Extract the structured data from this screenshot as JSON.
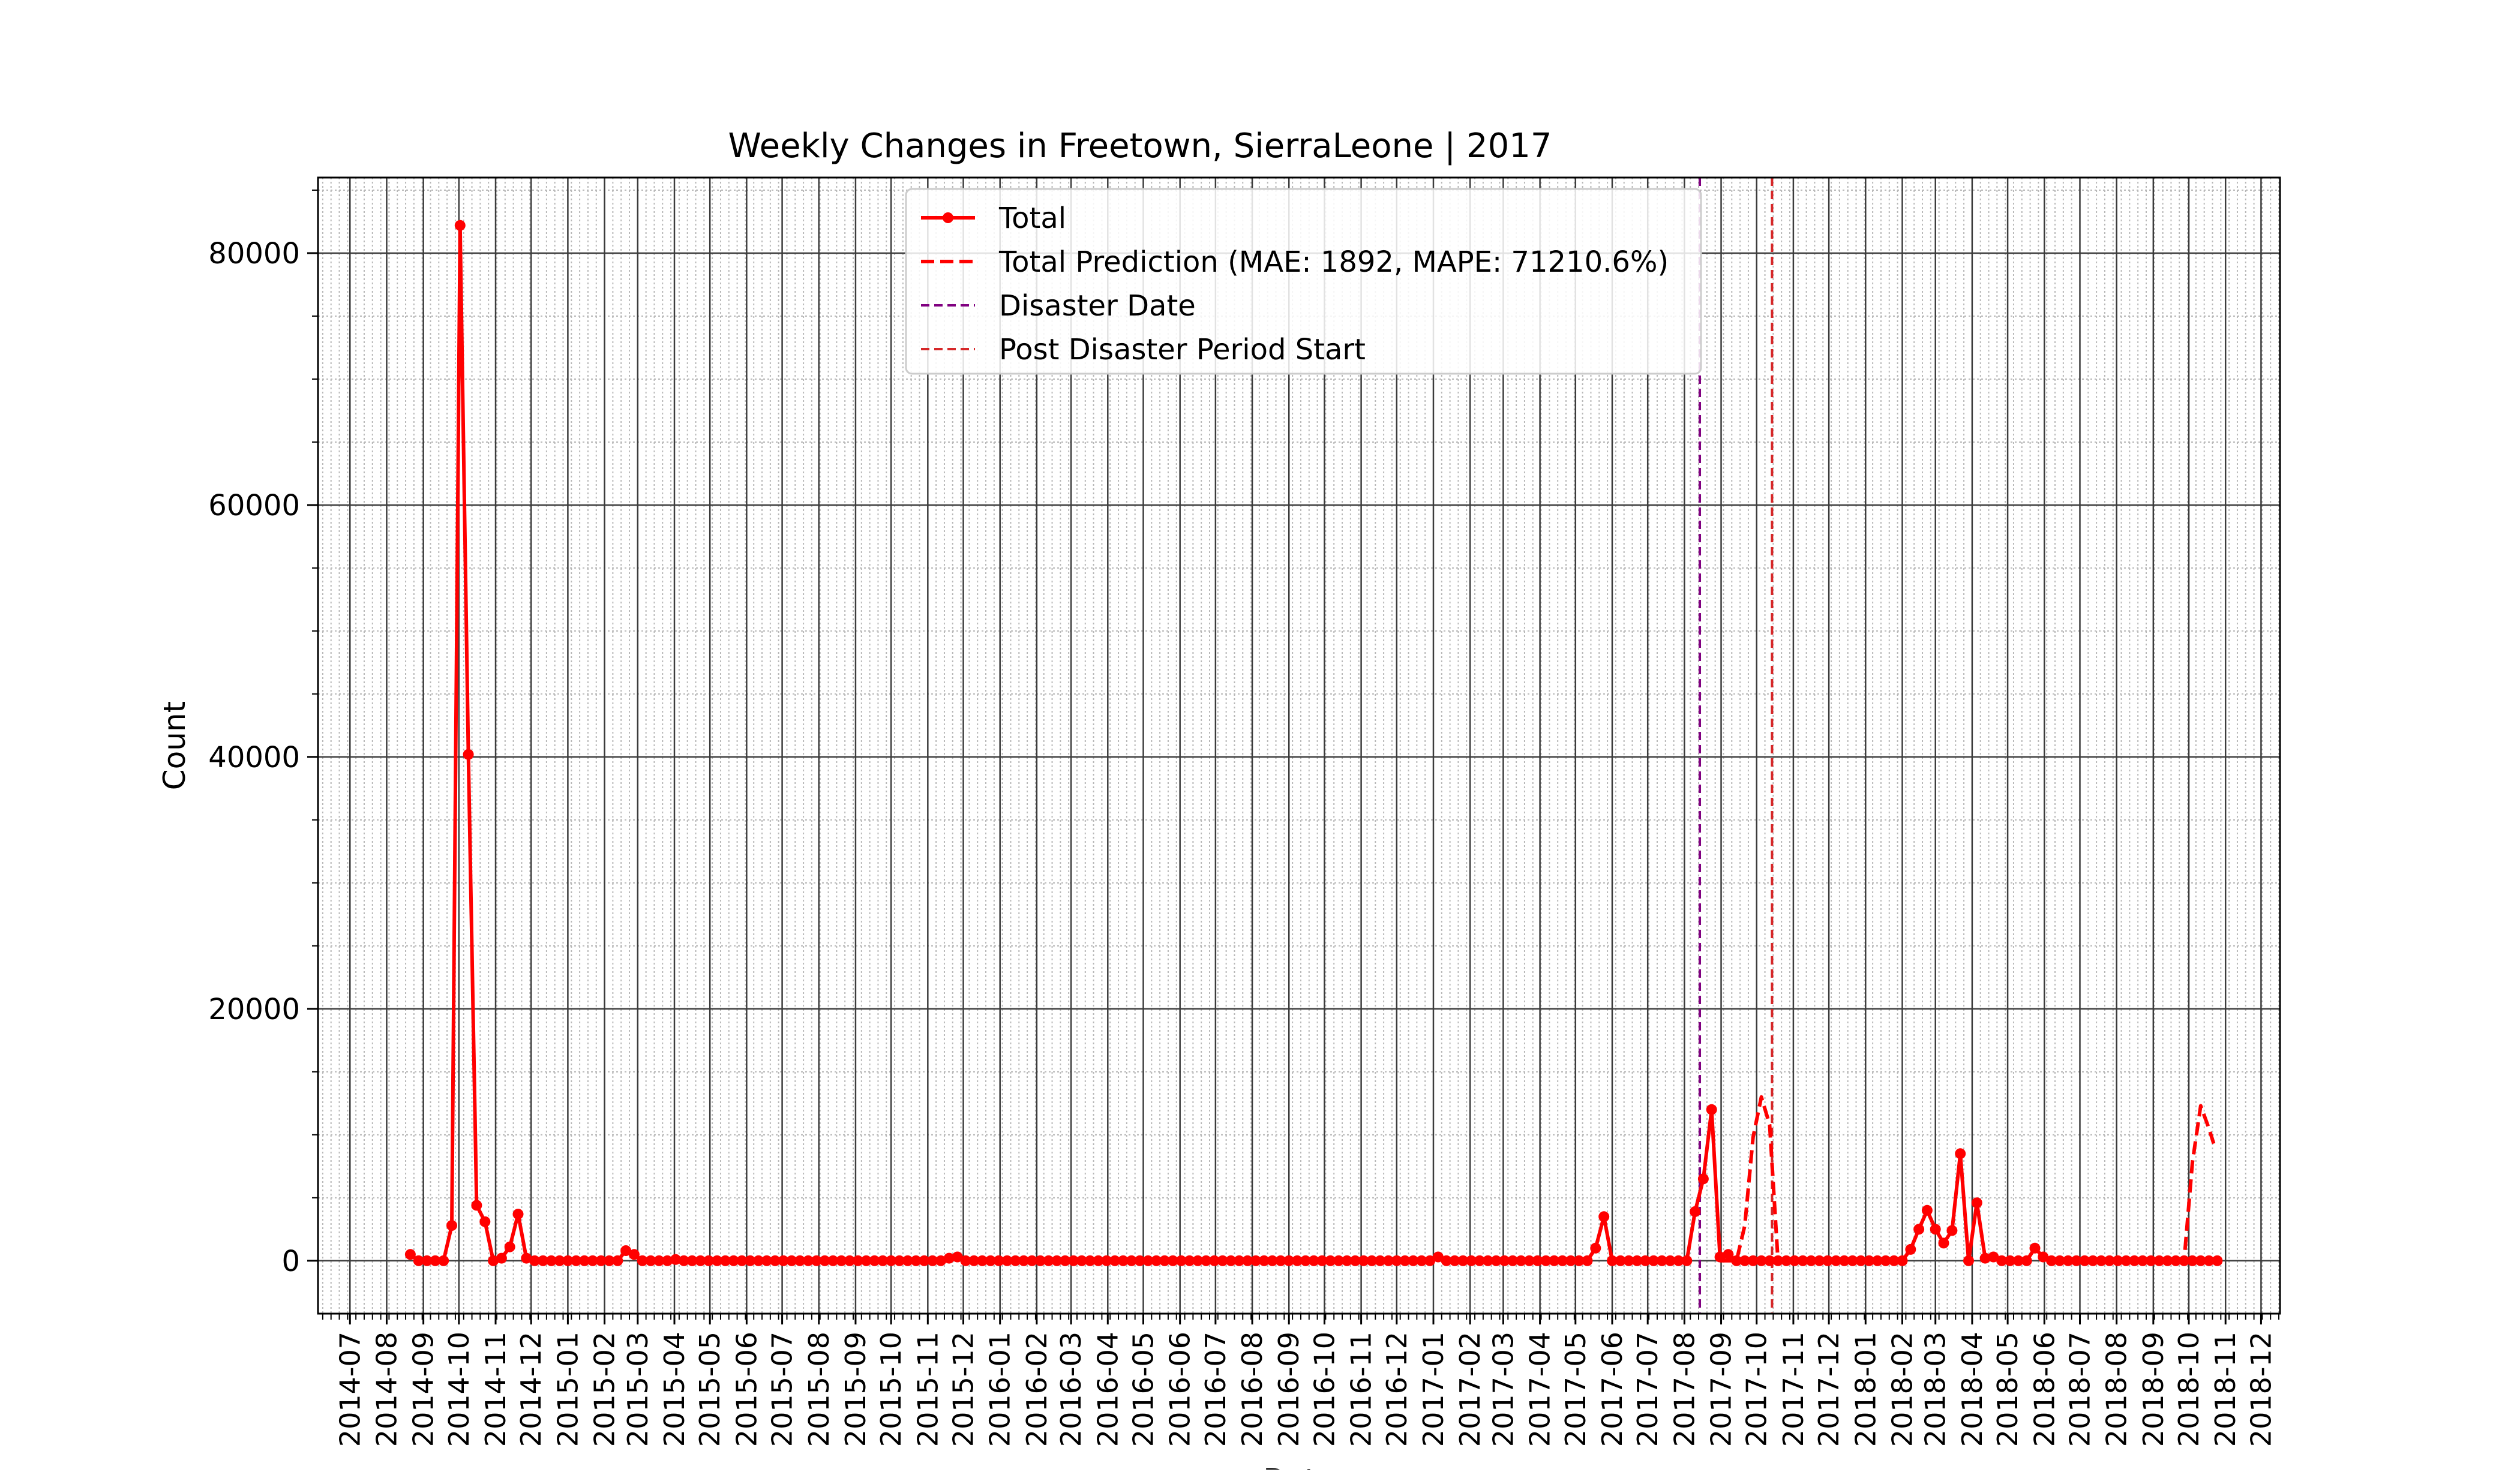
{
  "chart_data": {
    "type": "line",
    "title": "Weekly Changes in Freetown, SierraLeone | 2017",
    "xlabel": "Date",
    "ylabel": "Count",
    "ylim": [
      -4200,
      86000
    ],
    "xlim": [
      "2014-06-04",
      "2018-12-17"
    ],
    "yticks": [
      0,
      20000,
      40000,
      60000,
      80000
    ],
    "grid": true,
    "legend_placement": "upper center",
    "x_tick_labels": [
      "2014-07",
      "2014-08",
      "2014-09",
      "2014-10",
      "2014-11",
      "2014-12",
      "2015-01",
      "2015-02",
      "2015-03",
      "2015-04",
      "2015-05",
      "2015-06",
      "2015-07",
      "2015-08",
      "2015-09",
      "2015-10",
      "2015-11",
      "2015-12",
      "2016-01",
      "2016-02",
      "2016-03",
      "2016-04",
      "2016-05",
      "2016-06",
      "2016-07",
      "2016-08",
      "2016-09",
      "2016-10",
      "2016-11",
      "2016-12",
      "2017-01",
      "2017-02",
      "2017-03",
      "2017-04",
      "2017-05",
      "2017-06",
      "2017-07",
      "2017-08",
      "2017-09",
      "2017-10",
      "2017-11",
      "2017-12",
      "2018-01",
      "2018-02",
      "2018-03",
      "2018-04",
      "2018-05",
      "2018-06",
      "2018-07",
      "2018-08",
      "2018-09",
      "2018-10",
      "2018-11",
      "2018-12"
    ],
    "series": [
      {
        "name": "Total",
        "color": "#ff0000",
        "style": "solid-markers",
        "points": [
          [
            "2014-08-21",
            500
          ],
          [
            "2014-08-28",
            0
          ],
          [
            "2014-09-04",
            0
          ],
          [
            "2014-09-11",
            0
          ],
          [
            "2014-09-18",
            0
          ],
          [
            "2014-09-25",
            2800
          ],
          [
            "2014-10-02",
            82200
          ],
          [
            "2014-10-09",
            40200
          ],
          [
            "2014-10-16",
            4400
          ],
          [
            "2014-10-23",
            3100
          ],
          [
            "2014-10-30",
            0
          ],
          [
            "2014-11-06",
            200
          ],
          [
            "2014-11-13",
            1100
          ],
          [
            "2014-11-20",
            3700
          ],
          [
            "2014-11-27",
            200
          ],
          [
            "2014-12-04",
            0
          ],
          [
            "2014-12-11",
            0
          ],
          [
            "2014-12-18",
            0
          ],
          [
            "2014-12-25",
            0
          ],
          [
            "2015-01-01",
            0
          ],
          [
            "2015-01-08",
            0
          ],
          [
            "2015-01-15",
            0
          ],
          [
            "2015-01-22",
            0
          ],
          [
            "2015-01-29",
            0
          ],
          [
            "2015-02-05",
            0
          ],
          [
            "2015-02-12",
            0
          ],
          [
            "2015-02-19",
            800
          ],
          [
            "2015-02-26",
            500
          ],
          [
            "2015-03-05",
            0
          ],
          [
            "2015-03-12",
            0
          ],
          [
            "2015-03-19",
            0
          ],
          [
            "2015-03-26",
            0
          ],
          [
            "2015-04-02",
            100
          ],
          [
            "2015-04-09",
            0
          ],
          [
            "2015-04-16",
            0
          ],
          [
            "2015-04-23",
            0
          ],
          [
            "2015-04-30",
            0
          ],
          [
            "2015-05-07",
            0
          ],
          [
            "2015-05-14",
            0
          ],
          [
            "2015-05-21",
            0
          ],
          [
            "2015-05-28",
            0
          ],
          [
            "2015-06-04",
            0
          ],
          [
            "2015-06-11",
            0
          ],
          [
            "2015-06-18",
            0
          ],
          [
            "2015-06-25",
            0
          ],
          [
            "2015-07-02",
            0
          ],
          [
            "2015-07-09",
            0
          ],
          [
            "2015-07-16",
            0
          ],
          [
            "2015-07-23",
            0
          ],
          [
            "2015-07-30",
            0
          ],
          [
            "2015-08-06",
            0
          ],
          [
            "2015-08-13",
            0
          ],
          [
            "2015-08-20",
            0
          ],
          [
            "2015-08-27",
            0
          ],
          [
            "2015-09-03",
            0
          ],
          [
            "2015-09-10",
            0
          ],
          [
            "2015-09-17",
            0
          ],
          [
            "2015-09-24",
            0
          ],
          [
            "2015-10-01",
            0
          ],
          [
            "2015-10-08",
            0
          ],
          [
            "2015-10-15",
            0
          ],
          [
            "2015-10-22",
            0
          ],
          [
            "2015-10-29",
            0
          ],
          [
            "2015-11-05",
            0
          ],
          [
            "2015-11-12",
            0
          ],
          [
            "2015-11-19",
            200
          ],
          [
            "2015-11-26",
            300
          ],
          [
            "2015-12-03",
            0
          ],
          [
            "2015-12-10",
            0
          ],
          [
            "2015-12-17",
            0
          ],
          [
            "2015-12-24",
            0
          ],
          [
            "2015-12-31",
            0
          ],
          [
            "2016-01-07",
            0
          ],
          [
            "2016-01-14",
            0
          ],
          [
            "2016-01-21",
            0
          ],
          [
            "2016-01-28",
            0
          ],
          [
            "2016-02-04",
            0
          ],
          [
            "2016-02-11",
            0
          ],
          [
            "2016-02-18",
            0
          ],
          [
            "2016-02-25",
            0
          ],
          [
            "2016-03-03",
            0
          ],
          [
            "2016-03-10",
            0
          ],
          [
            "2016-03-17",
            0
          ],
          [
            "2016-03-24",
            0
          ],
          [
            "2016-03-31",
            0
          ],
          [
            "2016-04-07",
            0
          ],
          [
            "2016-04-14",
            0
          ],
          [
            "2016-04-21",
            0
          ],
          [
            "2016-04-28",
            0
          ],
          [
            "2016-05-05",
            0
          ],
          [
            "2016-05-12",
            0
          ],
          [
            "2016-05-19",
            0
          ],
          [
            "2016-05-26",
            0
          ],
          [
            "2016-06-02",
            0
          ],
          [
            "2016-06-09",
            0
          ],
          [
            "2016-06-16",
            0
          ],
          [
            "2016-06-23",
            0
          ],
          [
            "2016-06-30",
            0
          ],
          [
            "2016-07-07",
            0
          ],
          [
            "2016-07-14",
            0
          ],
          [
            "2016-07-21",
            0
          ],
          [
            "2016-07-28",
            0
          ],
          [
            "2016-08-04",
            0
          ],
          [
            "2016-08-11",
            0
          ],
          [
            "2016-08-18",
            0
          ],
          [
            "2016-08-25",
            0
          ],
          [
            "2016-09-01",
            0
          ],
          [
            "2016-09-08",
            0
          ],
          [
            "2016-09-15",
            0
          ],
          [
            "2016-09-22",
            0
          ],
          [
            "2016-09-29",
            0
          ],
          [
            "2016-10-06",
            0
          ],
          [
            "2016-10-13",
            0
          ],
          [
            "2016-10-20",
            0
          ],
          [
            "2016-10-27",
            0
          ],
          [
            "2016-11-03",
            0
          ],
          [
            "2016-11-10",
            0
          ],
          [
            "2016-11-17",
            0
          ],
          [
            "2016-11-24",
            0
          ],
          [
            "2016-12-01",
            0
          ],
          [
            "2016-12-08",
            0
          ],
          [
            "2016-12-15",
            0
          ],
          [
            "2016-12-22",
            0
          ],
          [
            "2016-12-29",
            0
          ],
          [
            "2017-01-05",
            300
          ],
          [
            "2017-01-12",
            0
          ],
          [
            "2017-01-19",
            0
          ],
          [
            "2017-01-26",
            0
          ],
          [
            "2017-02-02",
            0
          ],
          [
            "2017-02-09",
            0
          ],
          [
            "2017-02-16",
            0
          ],
          [
            "2017-02-23",
            0
          ],
          [
            "2017-03-02",
            0
          ],
          [
            "2017-03-09",
            0
          ],
          [
            "2017-03-16",
            0
          ],
          [
            "2017-03-23",
            0
          ],
          [
            "2017-03-30",
            0
          ],
          [
            "2017-04-06",
            0
          ],
          [
            "2017-04-13",
            0
          ],
          [
            "2017-04-20",
            0
          ],
          [
            "2017-04-27",
            0
          ],
          [
            "2017-05-04",
            0
          ],
          [
            "2017-05-11",
            0
          ],
          [
            "2017-05-18",
            1000
          ],
          [
            "2017-05-25",
            3500
          ],
          [
            "2017-06-01",
            0
          ],
          [
            "2017-06-08",
            0
          ],
          [
            "2017-06-15",
            0
          ],
          [
            "2017-06-22",
            0
          ],
          [
            "2017-06-29",
            0
          ],
          [
            "2017-07-06",
            0
          ],
          [
            "2017-07-13",
            0
          ],
          [
            "2017-07-20",
            0
          ],
          [
            "2017-07-27",
            0
          ],
          [
            "2017-08-03",
            0
          ],
          [
            "2017-08-10",
            3900
          ],
          [
            "2017-08-17",
            6500
          ],
          [
            "2017-08-24",
            12000
          ],
          [
            "2017-08-31",
            300
          ],
          [
            "2017-09-07",
            500
          ],
          [
            "2017-09-14",
            0
          ],
          [
            "2017-09-21",
            0
          ],
          [
            "2017-09-28",
            0
          ],
          [
            "2017-10-05",
            0
          ],
          [
            "2017-10-12",
            0
          ],
          [
            "2017-10-19",
            0
          ],
          [
            "2017-10-26",
            0
          ],
          [
            "2017-11-02",
            0
          ],
          [
            "2017-11-09",
            0
          ],
          [
            "2017-11-16",
            0
          ],
          [
            "2017-11-23",
            0
          ],
          [
            "2017-11-30",
            0
          ],
          [
            "2017-12-07",
            0
          ],
          [
            "2017-12-14",
            0
          ],
          [
            "2017-12-21",
            0
          ],
          [
            "2017-12-28",
            0
          ],
          [
            "2018-01-04",
            0
          ],
          [
            "2018-01-11",
            0
          ],
          [
            "2018-01-18",
            0
          ],
          [
            "2018-01-25",
            0
          ],
          [
            "2018-02-01",
            0
          ],
          [
            "2018-02-08",
            900
          ],
          [
            "2018-02-15",
            2500
          ],
          [
            "2018-02-22",
            4000
          ],
          [
            "2018-03-01",
            2500
          ],
          [
            "2018-03-08",
            1400
          ],
          [
            "2018-03-15",
            2400
          ],
          [
            "2018-03-22",
            8500
          ],
          [
            "2018-03-29",
            0
          ],
          [
            "2018-04-05",
            4600
          ],
          [
            "2018-04-12",
            200
          ],
          [
            "2018-04-19",
            300
          ],
          [
            "2018-04-26",
            0
          ],
          [
            "2018-05-03",
            0
          ],
          [
            "2018-05-10",
            0
          ],
          [
            "2018-05-17",
            0
          ],
          [
            "2018-05-24",
            1000
          ],
          [
            "2018-05-31",
            300
          ],
          [
            "2018-06-07",
            0
          ],
          [
            "2018-06-14",
            0
          ],
          [
            "2018-06-21",
            0
          ],
          [
            "2018-06-28",
            0
          ],
          [
            "2018-07-05",
            0
          ],
          [
            "2018-07-12",
            0
          ],
          [
            "2018-07-19",
            0
          ],
          [
            "2018-07-26",
            0
          ],
          [
            "2018-08-02",
            0
          ],
          [
            "2018-08-09",
            0
          ],
          [
            "2018-08-16",
            0
          ],
          [
            "2018-08-23",
            0
          ],
          [
            "2018-08-30",
            0
          ],
          [
            "2018-09-06",
            0
          ],
          [
            "2018-09-13",
            0
          ],
          [
            "2018-09-20",
            0
          ],
          [
            "2018-09-27",
            0
          ],
          [
            "2018-10-04",
            0
          ],
          [
            "2018-10-11",
            0
          ],
          [
            "2018-10-18",
            0
          ],
          [
            "2018-10-25",
            0
          ]
        ]
      },
      {
        "name": "Total Prediction (MAE: 1892, MAPE: 71210.6%)",
        "color": "#ff0000",
        "style": "dashed",
        "segments": [
          [
            [
              "2017-08-31",
              0
            ],
            [
              "2017-09-07",
              0
            ],
            [
              "2017-09-14",
              0
            ],
            [
              "2017-09-21",
              2800
            ],
            [
              "2017-09-28",
              9800
            ],
            [
              "2017-10-05",
              13000
            ],
            [
              "2017-10-12",
              10800
            ],
            [
              "2017-10-19",
              0
            ],
            [
              "2017-10-26",
              0
            ]
          ],
          [
            [
              "2018-09-20",
              0
            ],
            [
              "2018-09-27",
              0
            ],
            [
              "2018-10-04",
              7800
            ],
            [
              "2018-10-11",
              12300
            ],
            [
              "2018-10-18",
              10500
            ],
            [
              "2018-10-22",
              9300
            ]
          ]
        ]
      }
    ],
    "vlines": [
      {
        "name": "Disaster Date",
        "date": "2017-08-14",
        "color": "#800080"
      },
      {
        "name": "Post Disaster Period Start",
        "date": "2017-10-14",
        "color": "#d62728"
      }
    ]
  }
}
